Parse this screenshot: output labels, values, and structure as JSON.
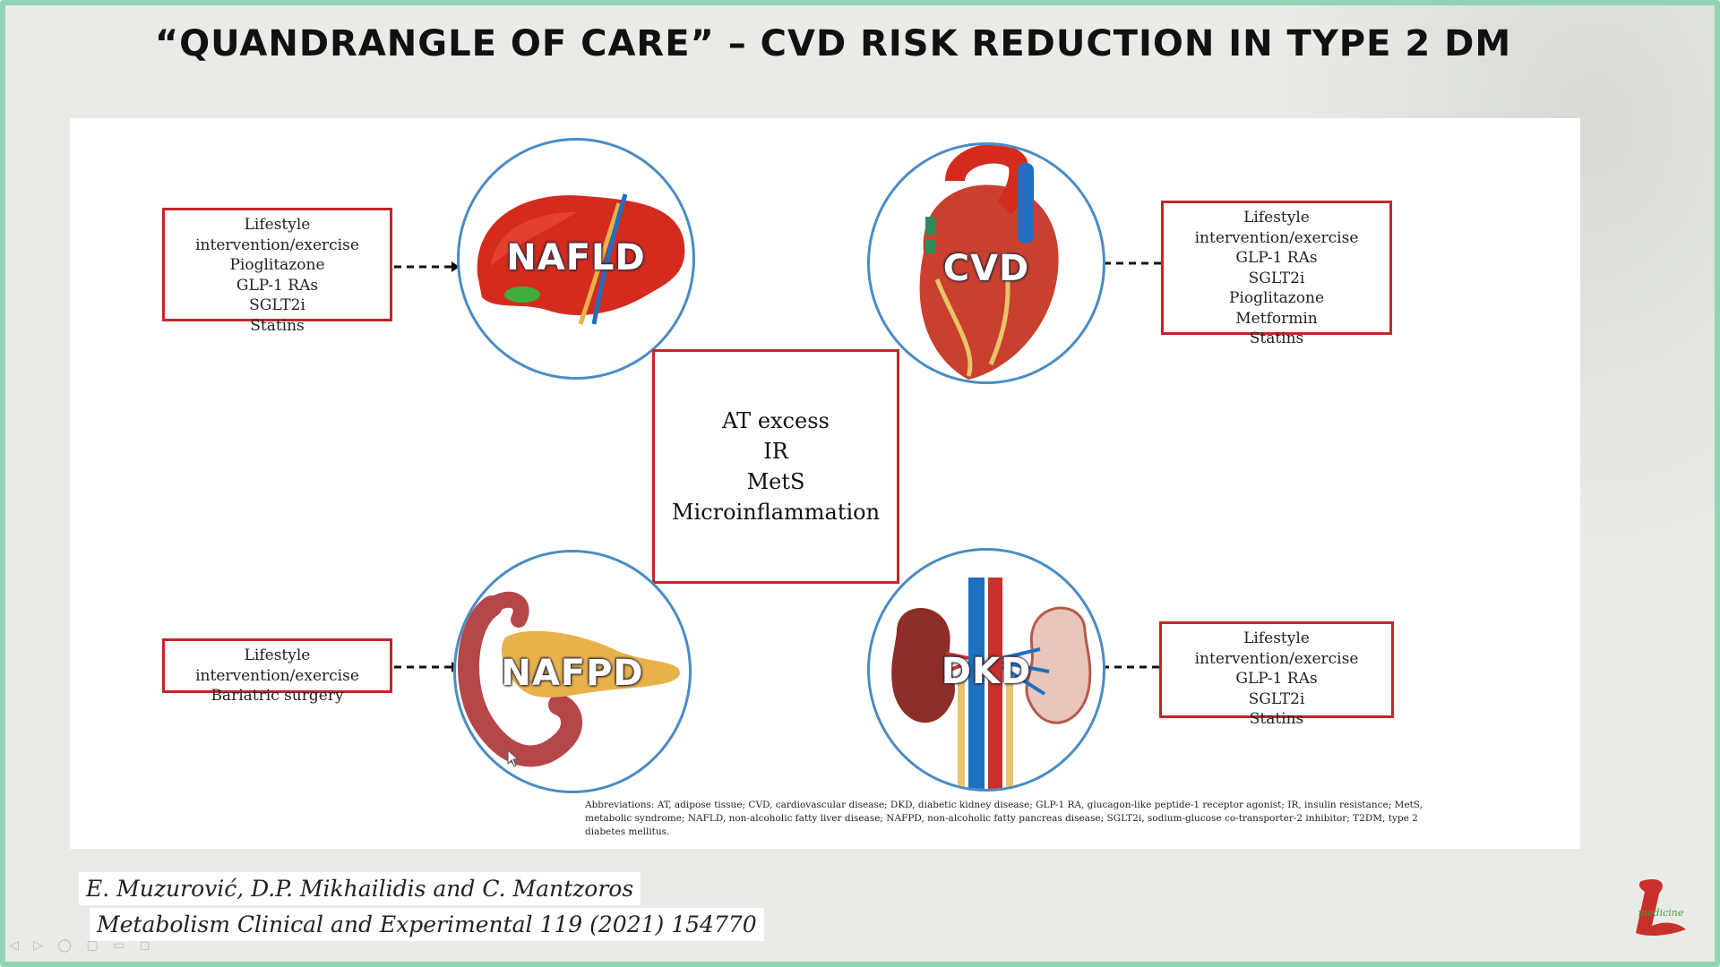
{
  "slide": {
    "title": "“QUANDRANGLE OF CARE” – CVD RISK REDUCTION IN TYPE 2 DM"
  },
  "diagram": {
    "center": {
      "lines": [
        "AT excess",
        "IR",
        "MetS",
        "Microinflammation"
      ]
    },
    "organs": {
      "nafld": {
        "label": "NAFLD",
        "treatments": [
          "Lifestyle intervention/exercise",
          "Pioglitazone",
          "GLP-1 RAs",
          "SGLT2i",
          "Statins"
        ]
      },
      "cvd": {
        "label": "CVD",
        "treatments": [
          "Lifestyle intervention/exercise",
          "GLP-1 RAs",
          "SGLT2i",
          "Pioglitazone",
          "Metformin",
          "Statins"
        ]
      },
      "nafpd": {
        "label": "NAFPD",
        "treatments": [
          "Lifestyle intervention/exercise",
          "Bariatric surgery"
        ]
      },
      "dkd": {
        "label": "DKD",
        "treatments": [
          "Lifestyle intervention/exercise",
          "GLP-1 RAs",
          "SGLT2i",
          "Statins"
        ]
      }
    },
    "abbreviations": "Abbreviations: AT, adipose tissue; CVD, cardiovascular disease; DKD, diabetic kidney disease; GLP-1 RA, glucagon-like peptide-1 receptor agonist; IR, insulin resistance; MetS, metabolic syndrome; NAFLD, non-alcoholic fatty liver disease; NAFPD, non-alcoholic fatty pancreas disease; SGLT2i, sodium-glucose co-transporter-2 inhibitor; T2DM, type 2 diabetes mellitus."
  },
  "citation": {
    "authors": "E. Muzurović, D.P. Mikhailidis and C. Mantzoros",
    "journal": "Metabolism Clinical and Experimental 119 (2021) 154770"
  },
  "logo": {
    "text": "medicine"
  },
  "colors": {
    "box_border": "#c0282b",
    "circle_border": "#4a8cc4",
    "frame": "#8fd6b4"
  }
}
